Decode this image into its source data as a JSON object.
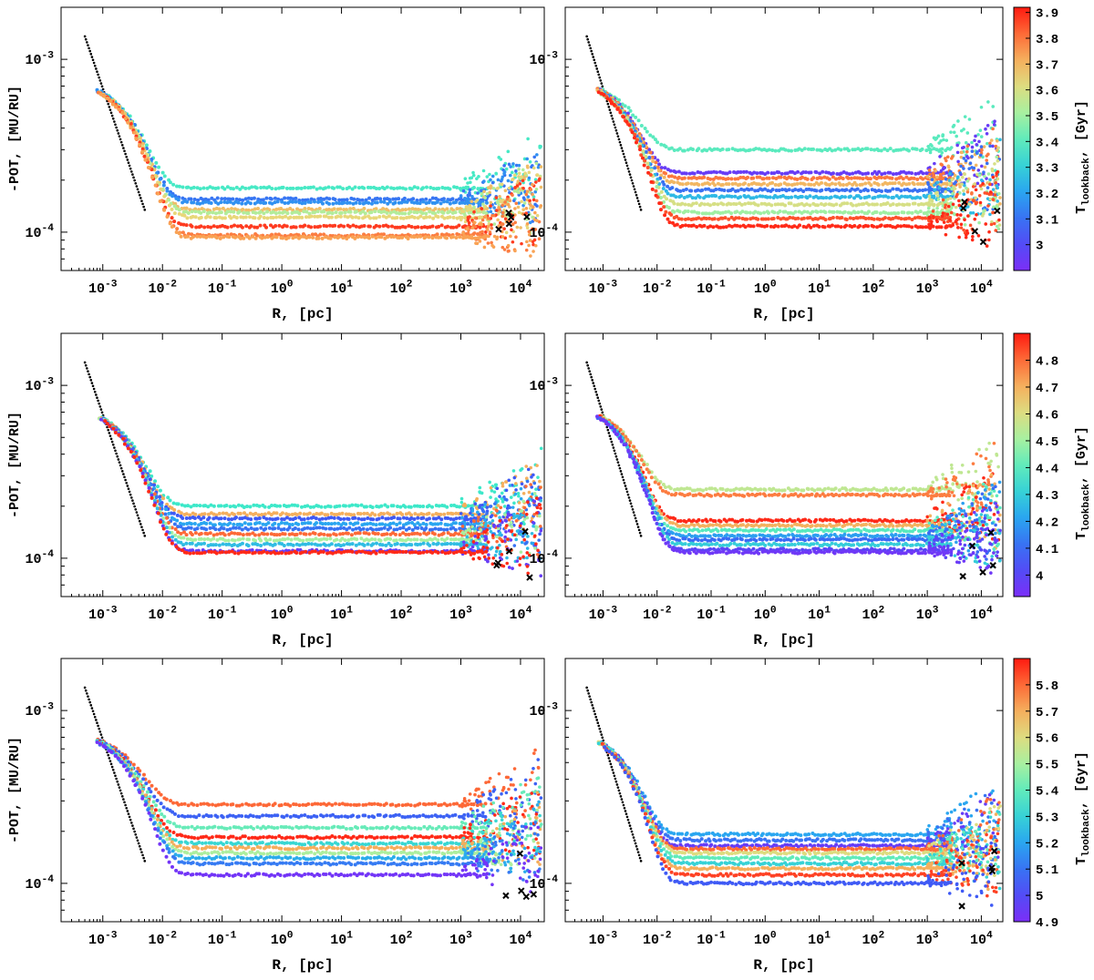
{
  "figure": {
    "xlabel": "R, [pc]",
    "ylabel": "-POT, [MU/RU]",
    "cbar_label_main": "T",
    "cbar_label_sub": "lookback",
    "cbar_label_unit": ", [Gyr]"
  },
  "chart_data": [
    {
      "type": "scatter",
      "panel": "row1-left",
      "xlabel": "R, [pc]",
      "ylabel": "-POT, [MU/RU]",
      "xscale": "log",
      "yscale": "log",
      "xlim": [
        0.0002,
        25000
      ],
      "ylim": [
        6e-05,
        0.002
      ],
      "xticks": [
        "10^-3",
        "10^-2",
        "10^-1",
        "10^0",
        "10^1",
        "10^2",
        "10^3",
        "10^4"
      ],
      "yticks": [
        "10^-4",
        "10^-3"
      ],
      "color_range_gyr": [
        2.95,
        3.92
      ],
      "series": [
        {
          "plateau": 0.00018,
          "t_gyr": 3.4
        },
        {
          "plateau": 0.000155,
          "t_gyr": 3.15
        },
        {
          "plateau": 0.000148,
          "t_gyr": 3.2
        },
        {
          "plateau": 0.000135,
          "t_gyr": 3.7
        },
        {
          "plateau": 0.00013,
          "t_gyr": 3.55
        },
        {
          "plateau": 0.000122,
          "t_gyr": 3.65
        },
        {
          "plateau": 0.000108,
          "t_gyr": 3.88
        },
        {
          "plateau": 9.6e-05,
          "t_gyr": 3.8
        },
        {
          "plateau": 9.3e-05,
          "t_gyr": 3.75
        }
      ]
    },
    {
      "type": "scatter",
      "panel": "row1-right",
      "xlabel": "R, [pc]",
      "ylabel": "",
      "xscale": "log",
      "yscale": "log",
      "xlim": [
        0.0002,
        25000
      ],
      "ylim": [
        6e-05,
        0.002
      ],
      "xticks": [
        "10^-3",
        "10^-2",
        "10^-1",
        "10^0",
        "10^1",
        "10^2",
        "10^3",
        "10^4"
      ],
      "yticks": [
        "10^-4",
        "10^-3"
      ],
      "color_range_gyr": [
        2.9,
        3.92
      ],
      "colorbar_ticks": [
        "3",
        "3.1",
        "3.2",
        "3.3",
        "3.4",
        "3.5",
        "3.6",
        "3.7",
        "3.8",
        "3.9"
      ],
      "series": [
        {
          "plateau": 0.0003,
          "t_gyr": 3.4
        },
        {
          "plateau": 0.00022,
          "t_gyr": 2.95
        },
        {
          "plateau": 0.000205,
          "t_gyr": 3.8
        },
        {
          "plateau": 0.00019,
          "t_gyr": 3.7
        },
        {
          "plateau": 0.000175,
          "t_gyr": 3.1
        },
        {
          "plateau": 0.00016,
          "t_gyr": 3.25
        },
        {
          "plateau": 0.000145,
          "t_gyr": 3.6
        },
        {
          "plateau": 0.00013,
          "t_gyr": 3.5
        },
        {
          "plateau": 0.00012,
          "t_gyr": 3.85
        },
        {
          "plateau": 0.000108,
          "t_gyr": 3.9
        }
      ]
    },
    {
      "type": "scatter",
      "panel": "row2-left",
      "xlabel": "R, [pc]",
      "ylabel": "-POT, [MU/RU]",
      "xscale": "log",
      "yscale": "log",
      "xlim": [
        0.0002,
        25000
      ],
      "ylim": [
        6e-05,
        0.002
      ],
      "xticks": [
        "10^-3",
        "10^-2",
        "10^-1",
        "10^0",
        "10^1",
        "10^2",
        "10^3",
        "10^4"
      ],
      "yticks": [
        "10^-4",
        "10^-3"
      ],
      "color_range_gyr": [
        3.9,
        4.9
      ],
      "series": [
        {
          "plateau": 0.0002,
          "t_gyr": 4.35
        },
        {
          "plateau": 0.00018,
          "t_gyr": 4.7
        },
        {
          "plateau": 0.00017,
          "t_gyr": 4.05
        },
        {
          "plateau": 0.000158,
          "t_gyr": 4.2
        },
        {
          "plateau": 0.000148,
          "t_gyr": 4.1
        },
        {
          "plateau": 0.000138,
          "t_gyr": 4.8
        },
        {
          "plateau": 0.000128,
          "t_gyr": 4.5
        },
        {
          "plateau": 0.00012,
          "t_gyr": 4.25
        },
        {
          "plateau": 0.00011,
          "t_gyr": 3.95
        },
        {
          "plateau": 0.000108,
          "t_gyr": 4.88
        }
      ]
    },
    {
      "type": "scatter",
      "panel": "row2-right",
      "xlabel": "R, [pc]",
      "ylabel": "",
      "xscale": "log",
      "yscale": "log",
      "xlim": [
        0.0002,
        25000
      ],
      "ylim": [
        6e-05,
        0.002
      ],
      "xticks": [
        "10^-3",
        "10^-2",
        "10^-1",
        "10^0",
        "10^1",
        "10^2",
        "10^3",
        "10^4"
      ],
      "yticks": [
        "10^-4",
        "10^-3"
      ],
      "color_range_gyr": [
        3.92,
        4.9
      ],
      "colorbar_ticks": [
        "4",
        "4.1",
        "4.2",
        "4.3",
        "4.4",
        "4.5",
        "4.6",
        "4.7",
        "4.8"
      ],
      "series": [
        {
          "plateau": 0.00025,
          "t_gyr": 4.55
        },
        {
          "plateau": 0.000232,
          "t_gyr": 4.78
        },
        {
          "plateau": 0.000165,
          "t_gyr": 4.88
        },
        {
          "plateau": 0.000155,
          "t_gyr": 4.7
        },
        {
          "plateau": 0.000145,
          "t_gyr": 4.4
        },
        {
          "plateau": 0.000135,
          "t_gyr": 4.2
        },
        {
          "plateau": 0.000128,
          "t_gyr": 4.1
        },
        {
          "plateau": 0.00012,
          "t_gyr": 4.3
        },
        {
          "plateau": 0.000112,
          "t_gyr": 4.0
        },
        {
          "plateau": 0.000108,
          "t_gyr": 3.95
        }
      ]
    },
    {
      "type": "scatter",
      "panel": "row3-left",
      "xlabel": "R, [pc]",
      "ylabel": "-POT, [MU/RU]",
      "xscale": "log",
      "yscale": "log",
      "xlim": [
        0.0002,
        25000
      ],
      "ylim": [
        6e-05,
        0.002
      ],
      "xticks": [
        "10^-3",
        "10^-2",
        "10^-1",
        "10^0",
        "10^1",
        "10^2",
        "10^3",
        "10^4"
      ],
      "yticks": [
        "10^-4",
        "10^-3"
      ],
      "color_range_gyr": [
        4.88,
        5.9
      ],
      "series": [
        {
          "plateau": 0.000285,
          "t_gyr": 5.8
        },
        {
          "plateau": 0.000245,
          "t_gyr": 5.05
        },
        {
          "plateau": 0.00021,
          "t_gyr": 5.4
        },
        {
          "plateau": 0.000185,
          "t_gyr": 5.88
        },
        {
          "plateau": 0.00017,
          "t_gyr": 5.3
        },
        {
          "plateau": 0.00016,
          "t_gyr": 5.7
        },
        {
          "plateau": 0.00015,
          "t_gyr": 5.5
        },
        {
          "plateau": 0.00014,
          "t_gyr": 5.2
        },
        {
          "plateau": 0.00013,
          "t_gyr": 5.1
        },
        {
          "plateau": 0.000112,
          "t_gyr": 4.9
        }
      ]
    },
    {
      "type": "scatter",
      "panel": "row3-right",
      "xlabel": "R, [pc]",
      "ylabel": "",
      "xscale": "log",
      "yscale": "log",
      "xlim": [
        0.0002,
        25000
      ],
      "ylim": [
        6e-05,
        0.002
      ],
      "xticks": [
        "10^-3",
        "10^-2",
        "10^-1",
        "10^0",
        "10^1",
        "10^2",
        "10^3",
        "10^4"
      ],
      "yticks": [
        "10^-4",
        "10^-3"
      ],
      "color_range_gyr": [
        4.9,
        5.9
      ],
      "colorbar_ticks": [
        "4.9",
        "5",
        "5.1",
        "5.2",
        "5.3",
        "5.4",
        "5.5",
        "5.6",
        "5.7",
        "5.8"
      ],
      "series": [
        {
          "plateau": 0.000192,
          "t_gyr": 5.2
        },
        {
          "plateau": 0.000178,
          "t_gyr": 5.1
        },
        {
          "plateau": 0.000165,
          "t_gyr": 4.95
        },
        {
          "plateau": 0.000158,
          "t_gyr": 5.8
        },
        {
          "plateau": 0.00015,
          "t_gyr": 5.6
        },
        {
          "plateau": 0.00014,
          "t_gyr": 5.4
        },
        {
          "plateau": 0.00013,
          "t_gyr": 5.3
        },
        {
          "plateau": 0.000122,
          "t_gyr": 5.7
        },
        {
          "plateau": 0.000112,
          "t_gyr": 5.85
        },
        {
          "plateau": 0.0001,
          "t_gyr": 5.05
        }
      ]
    }
  ]
}
